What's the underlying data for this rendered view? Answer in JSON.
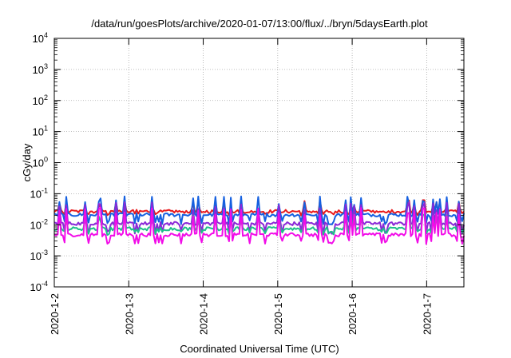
{
  "chart_data": {
    "type": "line",
    "title": "/data/run/goesPlots/archive/2020-01-07/13:00/flux/../bryn/5daysEarth.plot",
    "xlabel": "Coordinated Universal Time (UTC)",
    "ylabel": "cGy/day",
    "scale_y": "log",
    "ylim_exp": [
      -4,
      4
    ],
    "y_tick_exponents": [
      -4,
      -3,
      -2,
      -1,
      0,
      1,
      2,
      3,
      4
    ],
    "y_tick_base": "10",
    "x_range_days": [
      0,
      5.5
    ],
    "x_ticks": [
      {
        "label": "2020-1-2",
        "day": 0
      },
      {
        "label": "2020-1-3",
        "day": 1
      },
      {
        "label": "2020-1-4",
        "day": 2
      },
      {
        "label": "2020-1-5",
        "day": 3
      },
      {
        "label": "2020-1-6",
        "day": 4
      },
      {
        "label": "2020-1-7",
        "day": 5
      }
    ],
    "grid": true,
    "series": [
      {
        "color": "#e8191c",
        "base": 0.027,
        "spike": 0.055,
        "dip": 0.023
      },
      {
        "color": "#1560e0",
        "base": 0.021,
        "spike": 0.07,
        "dip": 0.012
      },
      {
        "color": "#8a28d8",
        "base": 0.011,
        "spike": 0.045,
        "dip": 0.006
      },
      {
        "color": "#1ec08a",
        "base": 0.0075,
        "spike": 0.02,
        "dip": 0.0055
      },
      {
        "color": "#f20ce8",
        "base": 0.0048,
        "spike": 0.03,
        "dip": 0.0028
      }
    ]
  }
}
